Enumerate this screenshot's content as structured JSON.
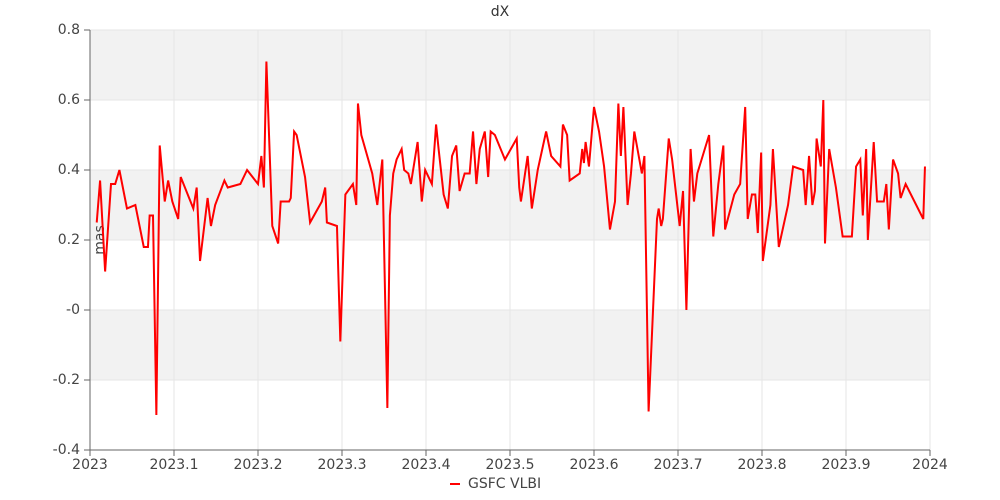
{
  "chart_data": {
    "type": "line",
    "title": "dX",
    "y_label": "mas",
    "x": [
      2023.008,
      2023.012,
      2023.018,
      2023.025,
      2023.03,
      2023.035,
      2023.044,
      2023.054,
      2023.064,
      2023.069,
      2023.071,
      2023.075,
      2023.079,
      2023.083,
      2023.089,
      2023.093,
      2023.098,
      2023.105,
      2023.108,
      2023.123,
      2023.127,
      2023.131,
      2023.14,
      2023.144,
      2023.149,
      2023.16,
      2023.164,
      2023.179,
      2023.187,
      2023.2,
      2023.204,
      2023.207,
      2023.21,
      2023.217,
      2023.224,
      2023.227,
      2023.237,
      2023.239,
      2023.243,
      2023.246,
      2023.256,
      2023.262,
      2023.276,
      2023.28,
      2023.282,
      2023.294,
      2023.298,
      2023.304,
      2023.313,
      2023.317,
      2023.319,
      2023.323,
      2023.336,
      2023.342,
      2023.348,
      2023.354,
      2023.357,
      2023.361,
      2023.365,
      2023.371,
      2023.374,
      2023.379,
      2023.382,
      2023.39,
      2023.395,
      2023.399,
      2023.407,
      2023.412,
      2023.415,
      2023.421,
      2023.426,
      2023.431,
      2023.436,
      2023.44,
      2023.446,
      2023.452,
      2023.456,
      2023.46,
      2023.464,
      2023.47,
      2023.474,
      2023.477,
      2023.482,
      2023.494,
      2023.508,
      2023.511,
      2023.513,
      2023.521,
      2023.526,
      2023.533,
      2023.543,
      2023.549,
      2023.56,
      2023.563,
      2023.568,
      2023.571,
      2023.577,
      2023.583,
      2023.586,
      2023.588,
      2023.59,
      2023.594,
      2023.6,
      2023.606,
      2023.612,
      2023.619,
      2023.625,
      2023.629,
      2023.632,
      2023.635,
      2023.64,
      2023.644,
      2023.648,
      2023.657,
      2023.66,
      2023.665,
      2023.675,
      2023.677,
      2023.68,
      2023.682,
      2023.689,
      2023.693,
      2023.702,
      2023.706,
      2023.71,
      2023.715,
      2023.719,
      2023.723,
      2023.737,
      2023.742,
      2023.748,
      2023.754,
      2023.756,
      2023.767,
      2023.774,
      2023.78,
      2023.783,
      2023.788,
      2023.792,
      2023.795,
      2023.799,
      2023.801,
      2023.81,
      2023.813,
      2023.82,
      2023.831,
      2023.837,
      2023.849,
      2023.852,
      2023.856,
      2023.86,
      2023.863,
      2023.865,
      2023.87,
      2023.873,
      2023.875,
      2023.88,
      2023.888,
      2023.896,
      2023.907,
      2023.912,
      2023.917,
      2023.92,
      2023.924,
      2023.926,
      2023.933,
      2023.937,
      2023.945,
      2023.948,
      2023.951,
      2023.956,
      2023.962,
      2023.965,
      2023.971,
      2023.992,
      2023.994
    ],
    "series": [
      {
        "name": "GSFC VLBI",
        "color": "#ff0000",
        "values": [
          0.25,
          0.37,
          0.11,
          0.36,
          0.36,
          0.4,
          0.29,
          0.3,
          0.18,
          0.18,
          0.27,
          0.27,
          -0.3,
          0.47,
          0.31,
          0.37,
          0.31,
          0.26,
          0.38,
          0.29,
          0.35,
          0.14,
          0.32,
          0.24,
          0.3,
          0.37,
          0.35,
          0.36,
          0.4,
          0.36,
          0.44,
          0.35,
          0.71,
          0.24,
          0.19,
          0.31,
          0.31,
          0.32,
          0.51,
          0.5,
          0.38,
          0.25,
          0.31,
          0.35,
          0.25,
          0.24,
          -0.09,
          0.33,
          0.36,
          0.3,
          0.59,
          0.5,
          0.39,
          0.3,
          0.43,
          -0.28,
          0.27,
          0.39,
          0.43,
          0.46,
          0.4,
          0.39,
          0.36,
          0.48,
          0.31,
          0.4,
          0.36,
          0.53,
          0.46,
          0.33,
          0.29,
          0.44,
          0.47,
          0.34,
          0.39,
          0.39,
          0.51,
          0.36,
          0.46,
          0.51,
          0.38,
          0.51,
          0.5,
          0.43,
          0.49,
          0.35,
          0.31,
          0.44,
          0.29,
          0.4,
          0.51,
          0.44,
          0.41,
          0.53,
          0.5,
          0.37,
          0.38,
          0.39,
          0.46,
          0.42,
          0.48,
          0.41,
          0.58,
          0.51,
          0.41,
          0.23,
          0.31,
          0.59,
          0.44,
          0.58,
          0.3,
          0.39,
          0.51,
          0.39,
          0.44,
          -0.29,
          0.26,
          0.29,
          0.24,
          0.26,
          0.49,
          0.43,
          0.24,
          0.34,
          0.0,
          0.46,
          0.31,
          0.39,
          0.5,
          0.21,
          0.36,
          0.47,
          0.23,
          0.33,
          0.36,
          0.58,
          0.26,
          0.33,
          0.33,
          0.22,
          0.45,
          0.14,
          0.3,
          0.46,
          0.18,
          0.3,
          0.41,
          0.4,
          0.3,
          0.44,
          0.3,
          0.34,
          0.49,
          0.41,
          0.6,
          0.19,
          0.46,
          0.35,
          0.21,
          0.21,
          0.41,
          0.43,
          0.27,
          0.46,
          0.2,
          0.48,
          0.31,
          0.31,
          0.36,
          0.23,
          0.43,
          0.39,
          0.32,
          0.36,
          0.26,
          0.41
        ]
      }
    ],
    "xlim": [
      2023,
      2024
    ],
    "xticks": [
      2023,
      2023.1,
      2023.2,
      2023.3,
      2023.4,
      2023.5,
      2023.6,
      2023.7,
      2023.8,
      2023.9,
      2024
    ],
    "ylim": [
      -0.4,
      0.8
    ],
    "yticks": [
      -0.4,
      -0.2,
      {
        "value": 0,
        "label": "-0"
      },
      0.2,
      0.4,
      0.6,
      0.8
    ],
    "grid": true,
    "legend": "bottom"
  }
}
